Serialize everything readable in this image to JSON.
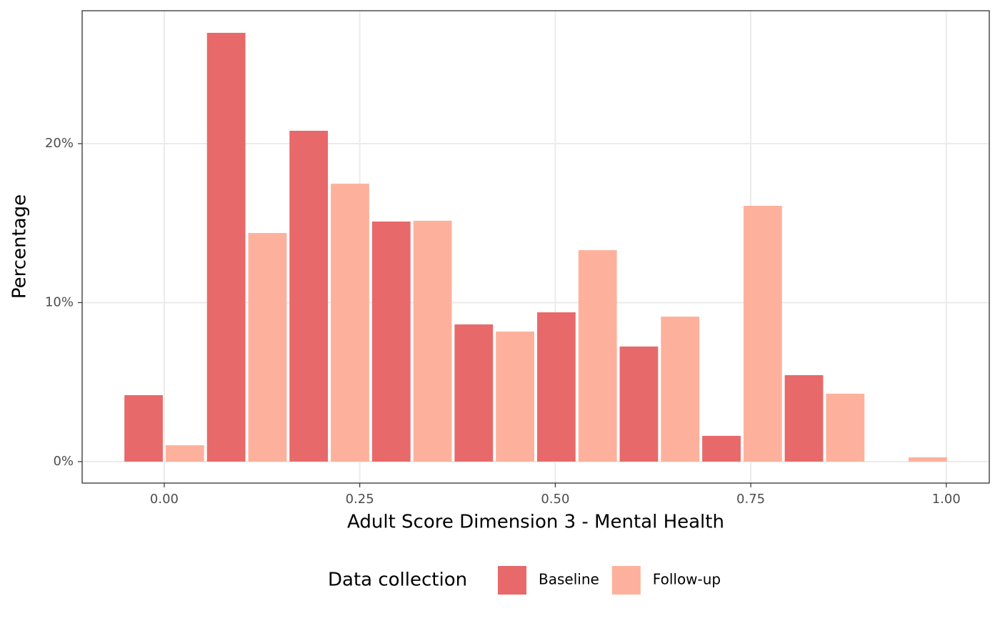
{
  "chart_data": {
    "type": "bar",
    "xlabel": "Adult Score Dimension 3 - Mental Health",
    "ylabel": "Percentage",
    "legend_title": "Data collection",
    "legend": "bottom",
    "grid": true,
    "x": [
      0,
      0.1056,
      0.2111,
      0.3167,
      0.4222,
      0.5278,
      0.6333,
      0.7389,
      0.8444,
      0.95
    ],
    "series": [
      {
        "name": "Baseline",
        "color": "#e8696a",
        "values": [
          4.18,
          26.97,
          20.81,
          15.1,
          8.63,
          9.39,
          7.24,
          1.62,
          5.44,
          0
        ]
      },
      {
        "name": "Follow-up",
        "color": "#fdb19d",
        "values": [
          1.03,
          14.38,
          17.48,
          15.15,
          8.18,
          13.3,
          9.12,
          16.09,
          4.27,
          0.27
        ]
      }
    ],
    "xlim": [
      -0.105,
      1.055
    ],
    "ylim": [
      -1.35,
      28.36
    ],
    "xticks": [
      {
        "value": 0,
        "label": "0.00"
      },
      {
        "value": 0.25,
        "label": "0.25"
      },
      {
        "value": 0.5,
        "label": "0.50"
      },
      {
        "value": 0.75,
        "label": "0.75"
      },
      {
        "value": 1,
        "label": "1.00"
      }
    ],
    "yticks": [
      {
        "value": 0,
        "label": "0%"
      },
      {
        "value": 10,
        "label": "10%"
      },
      {
        "value": 20,
        "label": "20%"
      }
    ]
  }
}
